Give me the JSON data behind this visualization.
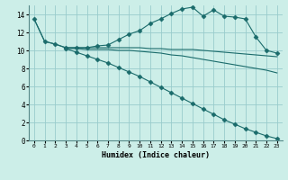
{
  "xlabel": "Humidex (Indice chaleur)",
  "bg_color": "#cceee8",
  "grid_color": "#99cccc",
  "line_color": "#1a6b6b",
  "xlim": [
    -0.5,
    23.5
  ],
  "ylim": [
    0,
    15
  ],
  "xticks": [
    0,
    1,
    2,
    3,
    4,
    5,
    6,
    7,
    8,
    9,
    10,
    11,
    12,
    13,
    14,
    15,
    16,
    17,
    18,
    19,
    20,
    21,
    22,
    23
  ],
  "yticks": [
    0,
    2,
    4,
    6,
    8,
    10,
    12,
    14
  ],
  "lines": [
    {
      "x": [
        0,
        1,
        2,
        3,
        4,
        5,
        6,
        7,
        8,
        9,
        10,
        11,
        12,
        13,
        14,
        15,
        16,
        17,
        18,
        19,
        20,
        21,
        22,
        23
      ],
      "y": [
        13.5,
        11.0,
        10.7,
        10.3,
        10.3,
        10.3,
        10.5,
        10.6,
        11.2,
        11.8,
        12.2,
        13.0,
        13.5,
        14.1,
        14.6,
        14.8,
        13.8,
        14.5,
        13.8,
        13.7,
        13.5,
        11.5,
        10.0,
        9.7
      ],
      "marker": "D",
      "markersize": 2.5
    },
    {
      "x": [
        0,
        1,
        2,
        3,
        4,
        5,
        6,
        7,
        8,
        9,
        10,
        11,
        12,
        13,
        14,
        15,
        16,
        17,
        18,
        19,
        20,
        21,
        22,
        23
      ],
      "y": [
        13.5,
        11.0,
        10.7,
        10.3,
        10.3,
        10.3,
        10.3,
        10.3,
        10.3,
        10.3,
        10.3,
        10.2,
        10.2,
        10.1,
        10.1,
        10.1,
        10.0,
        9.9,
        9.8,
        9.7,
        9.6,
        9.5,
        9.4,
        9.3
      ],
      "marker": null,
      "markersize": 0
    },
    {
      "x": [
        3,
        4,
        5,
        6,
        7,
        8,
        9,
        10,
        11,
        12,
        13,
        14,
        15,
        16,
        17,
        18,
        19,
        20,
        21,
        22,
        23
      ],
      "y": [
        10.2,
        10.2,
        10.1,
        10.1,
        10.1,
        10.0,
        10.0,
        9.9,
        9.8,
        9.7,
        9.5,
        9.4,
        9.2,
        9.0,
        8.8,
        8.6,
        8.4,
        8.2,
        8.0,
        7.8,
        7.5
      ],
      "marker": null,
      "markersize": 0
    },
    {
      "x": [
        3,
        4,
        5,
        6,
        7,
        8,
        9,
        10,
        11,
        12,
        13,
        14,
        15,
        16,
        17,
        18,
        19,
        20,
        21,
        22,
        23
      ],
      "y": [
        10.2,
        9.8,
        9.4,
        9.0,
        8.6,
        8.1,
        7.6,
        7.1,
        6.5,
        5.9,
        5.3,
        4.7,
        4.1,
        3.5,
        2.9,
        2.3,
        1.8,
        1.3,
        0.9,
        0.5,
        0.2
      ],
      "marker": "D",
      "markersize": 2.5
    }
  ]
}
